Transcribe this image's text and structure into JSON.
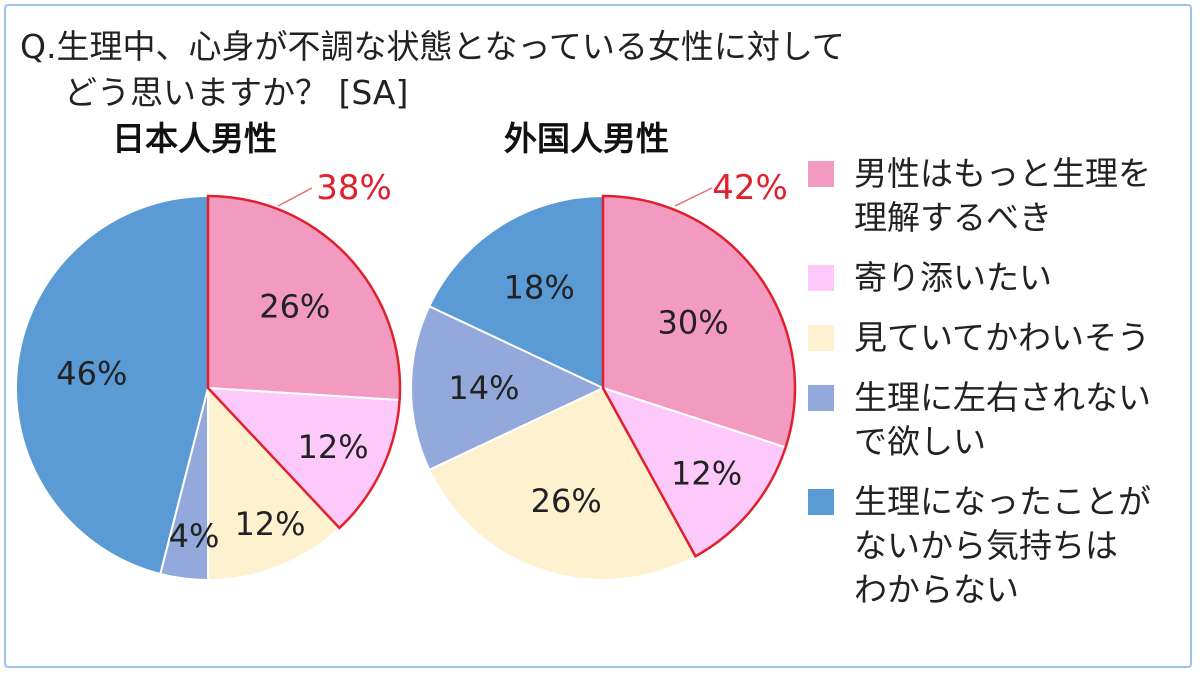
{
  "title": {
    "line1": "Q.生理中、心身が不調な状態となっている女性に対して",
    "line2": "どう思いますか？ [SA]"
  },
  "colors": {
    "pink": "#f29ac0",
    "light_pink": "#fdc9fb",
    "cream": "#fdf1cf",
    "lavender": "#93a9dc",
    "blue": "#5b9bd5",
    "highlight": "#e0202c",
    "label": "#222222"
  },
  "legend": [
    {
      "label": "男性はもっと生理を\n理解するべき",
      "color": "#f29ac0"
    },
    {
      "label": "寄り添いたい",
      "color": "#fdc9fb"
    },
    {
      "label": "見ていてかわいそう",
      "color": "#fdf1cf"
    },
    {
      "label": "生理に左右されない\nで欲しい",
      "color": "#93a9dc"
    },
    {
      "label": "生理になったことが\nないから気持ちは\nわからない",
      "color": "#5b9bd5"
    }
  ],
  "chart_data": [
    {
      "type": "pie",
      "title": "日本人男性",
      "categories": [
        "男性はもっと生理を理解するべき",
        "寄り添いたい",
        "見ていてかわいそう",
        "生理に左右されないで欲しい",
        "生理になったことがないから気持ちはわからない"
      ],
      "values": [
        26,
        12,
        12,
        4,
        46
      ],
      "value_labels": [
        "26%",
        "12%",
        "12%",
        "4%",
        "46%"
      ],
      "highlight_total_label": "38%",
      "highlight_slices": [
        0,
        1
      ],
      "start": "12 o'clock",
      "direction": "clockwise"
    },
    {
      "type": "pie",
      "title": "外国人男性",
      "categories": [
        "男性はもっと生理を理解するべき",
        "寄り添いたい",
        "見ていてかわいそう",
        "生理に左右されないで欲しい",
        "生理になったことがないから気持ちはわからない"
      ],
      "values": [
        30,
        12,
        26,
        14,
        18
      ],
      "value_labels": [
        "30%",
        "12%",
        "26%",
        "14%",
        "18%"
      ],
      "highlight_total_label": "42%",
      "highlight_slices": [
        0,
        1
      ],
      "start": "12 o'clock",
      "direction": "clockwise"
    }
  ]
}
